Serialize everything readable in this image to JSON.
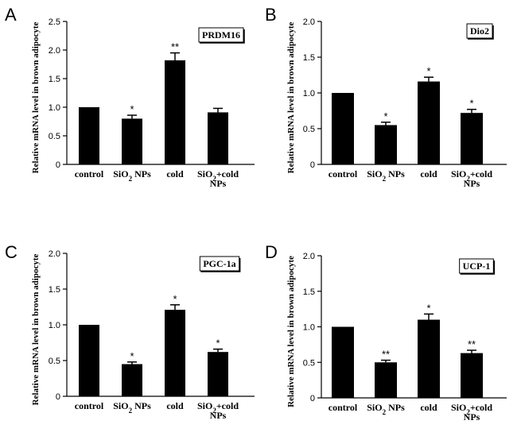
{
  "chart_data": [
    {
      "type": "bar",
      "panel": "A",
      "title": "PRDM16",
      "ylabel": "Relative mRNA level in brown adipocyte",
      "ylim": [
        0,
        2.5
      ],
      "yticks": [
        "0",
        "0.5",
        "1.0",
        "1.5",
        "2.0",
        "2.5"
      ],
      "categories": [
        [
          "control"
        ],
        [
          "SiO2 NPs"
        ],
        [
          "cold"
        ],
        [
          "SiO2+cold",
          "NPs"
        ]
      ],
      "values": [
        1.0,
        0.8,
        1.82,
        0.91
      ],
      "errors": [
        0,
        0.06,
        0.13,
        0.07
      ],
      "significance": [
        "",
        "*",
        "**",
        ""
      ]
    },
    {
      "type": "bar",
      "panel": "B",
      "title": "Dio2",
      "ylabel": "Relative mRNA level in brown adipocyte",
      "ylim": [
        0,
        2.0
      ],
      "yticks": [
        "0",
        "0.5",
        "1.0",
        "1.5",
        "2.0"
      ],
      "categories": [
        [
          "control"
        ],
        [
          "SiO2 NPs"
        ],
        [
          "cold"
        ],
        [
          "SiO2+cold",
          "NPs"
        ]
      ],
      "values": [
        1.0,
        0.55,
        1.16,
        0.72
      ],
      "errors": [
        0,
        0.04,
        0.06,
        0.05
      ],
      "significance": [
        "",
        "*",
        "*",
        "*"
      ]
    },
    {
      "type": "bar",
      "panel": "C",
      "title": "PGC-1a",
      "ylabel": "Relative mRNA level in brown adipocyte",
      "ylim": [
        0,
        2.0
      ],
      "yticks": [
        "0",
        "0.5",
        "1.0",
        "1.5",
        "2.0"
      ],
      "categories": [
        [
          "control"
        ],
        [
          "SiO2 NPs"
        ],
        [
          "cold"
        ],
        [
          "SiO2+cold",
          "NPs"
        ]
      ],
      "values": [
        1.0,
        0.45,
        1.21,
        0.62
      ],
      "errors": [
        0,
        0.03,
        0.07,
        0.04
      ],
      "significance": [
        "",
        "*",
        "*",
        "*"
      ]
    },
    {
      "type": "bar",
      "panel": "D",
      "title": "UCP-1",
      "ylabel": "Relative mRNA level in brown adipocyte",
      "ylim": [
        0,
        2.0
      ],
      "yticks": [
        "0",
        "0.5",
        "1.0",
        "1.5",
        "2.0"
      ],
      "categories": [
        [
          "control"
        ],
        [
          "SiO2 NPs"
        ],
        [
          "cold"
        ],
        [
          "SiO2+cold",
          "NPs"
        ]
      ],
      "values": [
        1.0,
        0.5,
        1.1,
        0.63
      ],
      "errors": [
        0,
        0.03,
        0.08,
        0.04
      ],
      "significance": [
        "",
        "**",
        "*",
        "**"
      ]
    }
  ]
}
